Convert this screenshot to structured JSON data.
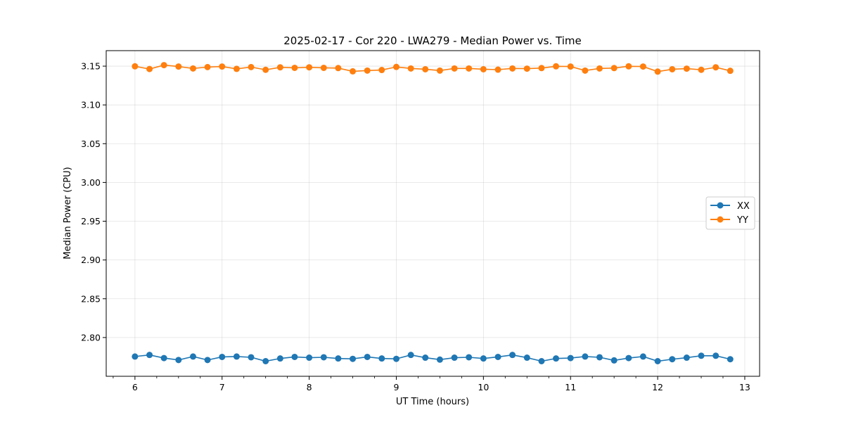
{
  "chart_data": {
    "type": "line",
    "title": "2025-02-17 - Cor 220 - LWA279 - Median Power vs. Time",
    "xlabel": "UT Time (hours)",
    "ylabel": "Median Power (CPU)",
    "xlim": [
      5.67,
      13.17
    ],
    "ylim": [
      2.75,
      3.17
    ],
    "xticks": [
      6,
      7,
      8,
      9,
      10,
      11,
      12,
      13
    ],
    "yticks": [
      2.8,
      2.85,
      2.9,
      2.95,
      3.0,
      3.05,
      3.1,
      3.15
    ],
    "grid": true,
    "legend_position": "center-right",
    "x": [
      6.0,
      6.167,
      6.333,
      6.5,
      6.667,
      6.833,
      7.0,
      7.167,
      7.333,
      7.5,
      7.667,
      7.833,
      8.0,
      8.167,
      8.333,
      8.5,
      8.667,
      8.833,
      9.0,
      9.167,
      9.333,
      9.5,
      9.667,
      9.833,
      10.0,
      10.167,
      10.333,
      10.5,
      10.667,
      10.833,
      11.0,
      11.167,
      11.333,
      11.5,
      11.667,
      11.833,
      12.0,
      12.167,
      12.333,
      12.5,
      12.667,
      12.833
    ],
    "series": [
      {
        "name": "XX",
        "color": "#1f77b4",
        "values": [
          2.7755,
          2.7775,
          2.7735,
          2.771,
          2.7755,
          2.771,
          2.775,
          2.7755,
          2.7745,
          2.7695,
          2.773,
          2.775,
          2.774,
          2.7745,
          2.773,
          2.7725,
          2.775,
          2.773,
          2.7725,
          2.7775,
          2.774,
          2.7715,
          2.774,
          2.7745,
          2.773,
          2.775,
          2.7775,
          2.774,
          2.7695,
          2.773,
          2.7735,
          2.7755,
          2.7745,
          2.7705,
          2.7735,
          2.7755,
          2.7695,
          2.772,
          2.774,
          2.7765,
          2.7765,
          2.772
        ]
      },
      {
        "name": "YY",
        "color": "#ff7f0e",
        "values": [
          3.1498,
          3.1463,
          3.1513,
          3.1495,
          3.147,
          3.1488,
          3.1495,
          3.1465,
          3.1488,
          3.1453,
          3.1485,
          3.1478,
          3.1485,
          3.1478,
          3.1475,
          3.1433,
          3.1443,
          3.145,
          3.149,
          3.147,
          3.146,
          3.1443,
          3.147,
          3.147,
          3.146,
          3.1455,
          3.147,
          3.1468,
          3.1475,
          3.1498,
          3.1495,
          3.1443,
          3.147,
          3.1475,
          3.1498,
          3.1495,
          3.143,
          3.146,
          3.1468,
          3.1453,
          3.1485,
          3.144
        ]
      }
    ]
  }
}
